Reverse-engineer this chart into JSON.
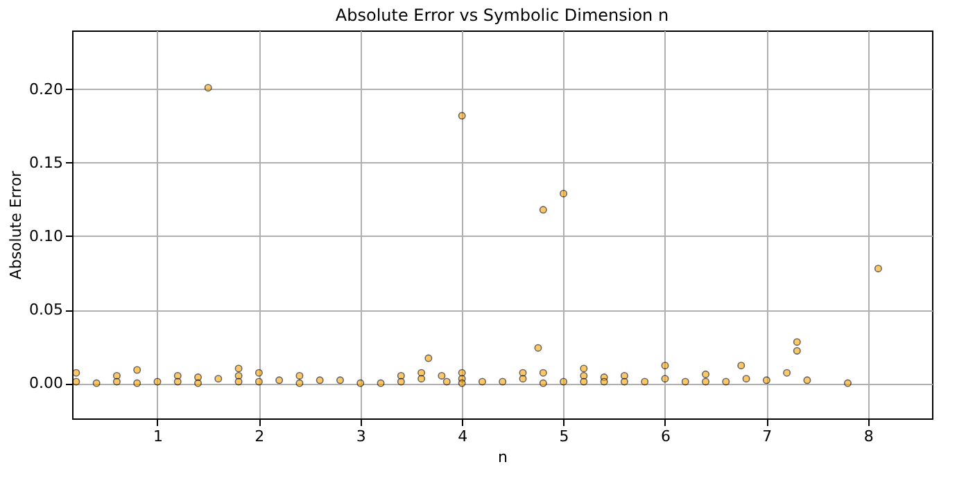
{
  "chart_data": {
    "type": "scatter",
    "title": "Absolute Error vs Symbolic Dimension n",
    "xlabel": "n",
    "ylabel": "Absolute Error",
    "xlim": [
      0.16,
      8.63
    ],
    "ylim": [
      -0.024,
      0.24
    ],
    "xticks": [
      1,
      2,
      3,
      4,
      5,
      6,
      7,
      8
    ],
    "yticks": [
      {
        "value": 0,
        "label": "0.00"
      },
      {
        "value": 0.05,
        "label": "0.05"
      },
      {
        "value": 0.1,
        "label": "0.10"
      },
      {
        "value": 0.15,
        "label": "0.15"
      },
      {
        "value": 0.2,
        "label": "0.20"
      }
    ],
    "grid": true,
    "marker": "circle",
    "legend": false,
    "series": [
      {
        "color": "#ffa500",
        "x": [
          0.2,
          0.2,
          0.4,
          0.6,
          0.6,
          0.8,
          0.8,
          1.0,
          1.2,
          1.2,
          1.4,
          1.4,
          1.5,
          1.6,
          1.8,
          1.8,
          1.8,
          2.0,
          2.0,
          2.2,
          2.4,
          2.4,
          2.6,
          2.8,
          3.0,
          3.2,
          3.4,
          3.4,
          3.6,
          3.6,
          3.67,
          3.8,
          3.85,
          4.0,
          4.0,
          4.0,
          4.0,
          4.2,
          4.4,
          4.6,
          4.6,
          4.75,
          4.8,
          4.8,
          4.8,
          5.0,
          5.0,
          5.2,
          5.2,
          5.2,
          5.4,
          5.4,
          5.6,
          5.6,
          5.8,
          6.0,
          6.0,
          6.2,
          6.4,
          6.4,
          6.6,
          6.75,
          6.8,
          7.0,
          7.2,
          7.3,
          7.3,
          7.4,
          7.8,
          8.1
        ],
        "values": [
          0.001,
          0.007,
          0.0,
          0.005,
          0.001,
          0.009,
          0.0,
          0.001,
          0.005,
          0.001,
          0.004,
          0.0,
          0.201,
          0.003,
          0.01,
          0.005,
          0.001,
          0.007,
          0.001,
          0.002,
          0.005,
          0.0,
          0.002,
          0.002,
          0.0,
          0.0,
          0.005,
          0.001,
          0.007,
          0.003,
          0.017,
          0.005,
          0.001,
          0.182,
          0.007,
          0.003,
          0.0,
          0.001,
          0.001,
          0.007,
          0.003,
          0.024,
          0.118,
          0.007,
          0.0,
          0.129,
          0.001,
          0.01,
          0.005,
          0.001,
          0.004,
          0.001,
          0.005,
          0.001,
          0.001,
          0.012,
          0.003,
          0.001,
          0.006,
          0.001,
          0.001,
          0.012,
          0.003,
          0.002,
          0.007,
          0.022,
          0.028,
          0.002,
          0.0,
          0.078
        ]
      }
    ]
  }
}
